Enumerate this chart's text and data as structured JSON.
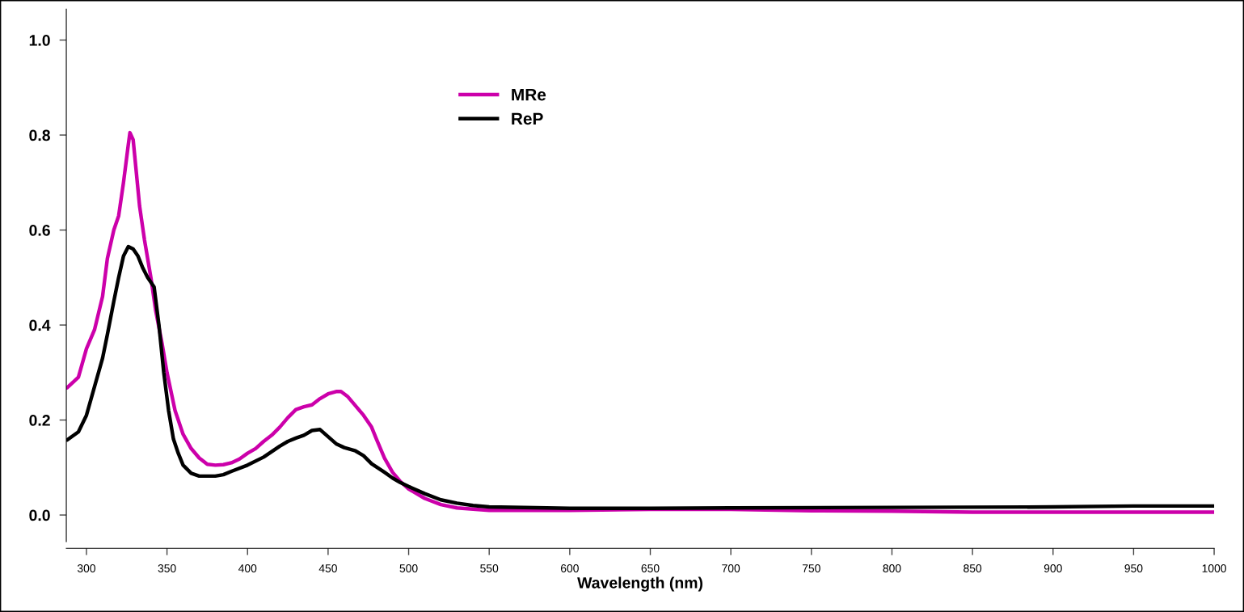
{
  "chart_data": {
    "type": "line",
    "xlabel": "Wavelength (nm)",
    "xlim": [
      287.5,
      1000
    ],
    "xticks": [
      300,
      350,
      400,
      450,
      500,
      550,
      600,
      650,
      700,
      750,
      800,
      850,
      900,
      950,
      1000
    ],
    "ylim": [
      -0.056,
      1.065
    ],
    "yticks": [
      {
        "value": 0,
        "label": "0.0"
      },
      {
        "value": 0.2,
        "label": "0.2"
      },
      {
        "value": 0.4,
        "label": "0.4"
      },
      {
        "value": 0.6,
        "label": "0.6"
      },
      {
        "value": 0.8,
        "label": "0.8"
      },
      {
        "value": 1.0,
        "label": "1.0"
      }
    ],
    "grid": false,
    "legend": "top",
    "marker": "none",
    "line_style": "solid",
    "series": [
      {
        "name": "MRe",
        "color": "#cc00aa",
        "x": [
          288,
          295,
          300,
          305,
          310,
          313,
          317,
          320,
          323,
          326,
          327,
          329,
          331,
          333,
          336,
          340,
          343,
          347,
          350,
          355,
          360,
          365,
          370,
          375,
          380,
          385,
          390,
          395,
          400,
          405,
          410,
          415,
          420,
          425,
          430,
          435,
          440,
          445,
          450,
          455,
          458,
          462,
          467,
          472,
          477,
          480,
          485,
          490,
          495,
          500,
          510,
          520,
          530,
          550,
          600,
          650,
          700,
          750,
          800,
          850,
          900,
          1000
        ],
        "values": [
          0.268,
          0.29,
          0.35,
          0.39,
          0.46,
          0.54,
          0.6,
          0.63,
          0.7,
          0.78,
          0.805,
          0.79,
          0.72,
          0.65,
          0.58,
          0.5,
          0.43,
          0.36,
          0.3,
          0.22,
          0.17,
          0.14,
          0.12,
          0.107,
          0.105,
          0.106,
          0.11,
          0.118,
          0.13,
          0.14,
          0.155,
          0.168,
          0.185,
          0.205,
          0.222,
          0.228,
          0.232,
          0.245,
          0.255,
          0.26,
          0.26,
          0.25,
          0.23,
          0.21,
          0.185,
          0.16,
          0.12,
          0.09,
          0.07,
          0.055,
          0.035,
          0.022,
          0.015,
          0.01,
          0.01,
          0.012,
          0.012,
          0.009,
          0.008,
          0.006,
          0.006,
          0.006
        ]
      },
      {
        "name": "ReP",
        "color": "#000000",
        "x": [
          288,
          295,
          300,
          305,
          310,
          313,
          317,
          320,
          323,
          326,
          329,
          332,
          335,
          338,
          342,
          345,
          348,
          351,
          354,
          357,
          360,
          365,
          370,
          380,
          385,
          390,
          400,
          410,
          420,
          425,
          430,
          435,
          440,
          445,
          450,
          455,
          460,
          467,
          472,
          477,
          485,
          490,
          495,
          500,
          510,
          520,
          530,
          540,
          550,
          600,
          650,
          700,
          800,
          900,
          950,
          1000
        ],
        "values": [
          0.158,
          0.175,
          0.21,
          0.27,
          0.33,
          0.38,
          0.45,
          0.5,
          0.545,
          0.565,
          0.56,
          0.545,
          0.52,
          0.5,
          0.48,
          0.4,
          0.3,
          0.22,
          0.16,
          0.13,
          0.105,
          0.088,
          0.082,
          0.082,
          0.085,
          0.092,
          0.105,
          0.122,
          0.145,
          0.155,
          0.162,
          0.168,
          0.178,
          0.18,
          0.165,
          0.15,
          0.142,
          0.135,
          0.125,
          0.108,
          0.09,
          0.078,
          0.068,
          0.06,
          0.045,
          0.032,
          0.025,
          0.02,
          0.017,
          0.014,
          0.014,
          0.015,
          0.016,
          0.017,
          0.019,
          0.019
        ]
      }
    ]
  }
}
